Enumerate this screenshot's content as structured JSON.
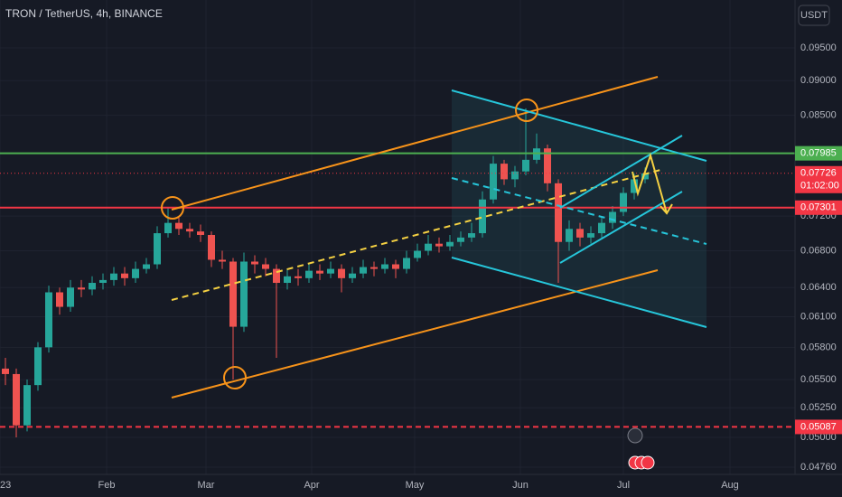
{
  "chart_data": {
    "type": "candlestick",
    "title": "TRON / TetherUS, 4h, BINANCE",
    "currency": "USDT",
    "log_scale": true,
    "up_color": "#26a69a",
    "down_color": "#ef5350",
    "categories": [
      "23",
      "Feb",
      "Mar",
      "Apr",
      "May",
      "Jun",
      "Jul",
      "Aug"
    ],
    "ylim": [
      0.04704,
      0.1028
    ],
    "yticks": [
      {
        "value": 0.095,
        "label": "0.09500"
      },
      {
        "value": 0.09,
        "label": "0.09000"
      },
      {
        "value": 0.085,
        "label": "0.08500"
      },
      {
        "value": 0.072,
        "label": "0.07200"
      },
      {
        "value": 0.068,
        "label": "0.06800"
      },
      {
        "value": 0.064,
        "label": "0.06400"
      },
      {
        "value": 0.061,
        "label": "0.06100"
      },
      {
        "value": 0.058,
        "label": "0.05800"
      },
      {
        "value": 0.055,
        "label": "0.05500"
      },
      {
        "value": 0.0525,
        "label": "0.05250"
      },
      {
        "value": 0.05,
        "label": "0.05000"
      },
      {
        "value": 0.0476,
        "label": "0.04760"
      }
    ],
    "price_lines": [
      {
        "value": 0.07985,
        "color": "#4caf50",
        "style": "solid"
      },
      {
        "value": 0.07726,
        "color": "#f23645",
        "style": "dotted",
        "countdown": "01:02:00"
      },
      {
        "value": 0.07301,
        "color": "#f23645",
        "style": "solid"
      },
      {
        "value": 0.05087,
        "color": "#f23645",
        "style": "dashed"
      }
    ],
    "open": [
      0.056,
      0.0555,
      0.051,
      0.0545,
      0.058,
      0.0635,
      0.062,
      0.064,
      0.0638,
      0.0645,
      0.0648,
      0.0655,
      0.065,
      0.066,
      0.0665,
      0.07,
      0.0712,
      0.0705,
      0.0702,
      0.0698,
      0.067,
      0.0668,
      0.06,
      0.0668,
      0.0665,
      0.066,
      0.0645,
      0.0652,
      0.065,
      0.0658,
      0.0655,
      0.066,
      0.065,
      0.0655,
      0.0662,
      0.066,
      0.0665,
      0.066,
      0.0672,
      0.068,
      0.0688,
      0.0685,
      0.069,
      0.0695,
      0.07,
      0.074,
      0.0785,
      0.0765,
      0.0775,
      0.079,
      0.0805,
      0.076,
      0.069,
      0.0705,
      0.0695,
      0.07,
      0.0712,
      0.0725,
      0.0748,
      0.0765
    ],
    "high": [
      0.057,
      0.056,
      0.055,
      0.0585,
      0.0642,
      0.064,
      0.0648,
      0.0648,
      0.0652,
      0.0655,
      0.0662,
      0.0662,
      0.0668,
      0.0672,
      0.0708,
      0.073,
      0.0718,
      0.0712,
      0.071,
      0.0702,
      0.068,
      0.0672,
      0.0678,
      0.0675,
      0.0672,
      0.0665,
      0.066,
      0.066,
      0.0665,
      0.0665,
      0.0668,
      0.0665,
      0.0662,
      0.067,
      0.0668,
      0.0672,
      0.067,
      0.068,
      0.0688,
      0.0698,
      0.0695,
      0.0698,
      0.0702,
      0.0712,
      0.075,
      0.0795,
      0.079,
      0.0782,
      0.086,
      0.0825,
      0.081,
      0.0765,
      0.0715,
      0.0712,
      0.0708,
      0.072,
      0.0732,
      0.0755,
      0.0772,
      0.078
    ],
    "low": [
      0.0545,
      0.05,
      0.0505,
      0.054,
      0.0575,
      0.0612,
      0.0615,
      0.063,
      0.0632,
      0.0638,
      0.0642,
      0.0642,
      0.0645,
      0.0655,
      0.066,
      0.0695,
      0.0698,
      0.0695,
      0.069,
      0.0662,
      0.066,
      0.055,
      0.0595,
      0.0655,
      0.0652,
      0.057,
      0.0638,
      0.0642,
      0.0645,
      0.0648,
      0.065,
      0.0635,
      0.0645,
      0.065,
      0.0652,
      0.0655,
      0.065,
      0.0655,
      0.0668,
      0.0675,
      0.0678,
      0.068,
      0.0685,
      0.069,
      0.0695,
      0.0735,
      0.0758,
      0.0755,
      0.077,
      0.0785,
      0.075,
      0.0645,
      0.068,
      0.0685,
      0.0688,
      0.0695,
      0.0705,
      0.072,
      0.074,
      0.076
    ],
    "close": [
      0.0555,
      0.051,
      0.0545,
      0.058,
      0.0635,
      0.062,
      0.064,
      0.0638,
      0.0645,
      0.0648,
      0.0655,
      0.065,
      0.066,
      0.0665,
      0.07,
      0.0712,
      0.0705,
      0.0702,
      0.0698,
      0.067,
      0.0668,
      0.06,
      0.0668,
      0.0665,
      0.066,
      0.0645,
      0.0652,
      0.065,
      0.0658,
      0.0655,
      0.066,
      0.065,
      0.0655,
      0.0662,
      0.066,
      0.0665,
      0.066,
      0.0672,
      0.068,
      0.0688,
      0.0685,
      0.069,
      0.0695,
      0.07,
      0.074,
      0.0785,
      0.0765,
      0.0775,
      0.079,
      0.0805,
      0.076,
      0.069,
      0.0705,
      0.0695,
      0.07,
      0.0712,
      0.0725,
      0.0748,
      0.0765,
      0.07726
    ]
  }
}
